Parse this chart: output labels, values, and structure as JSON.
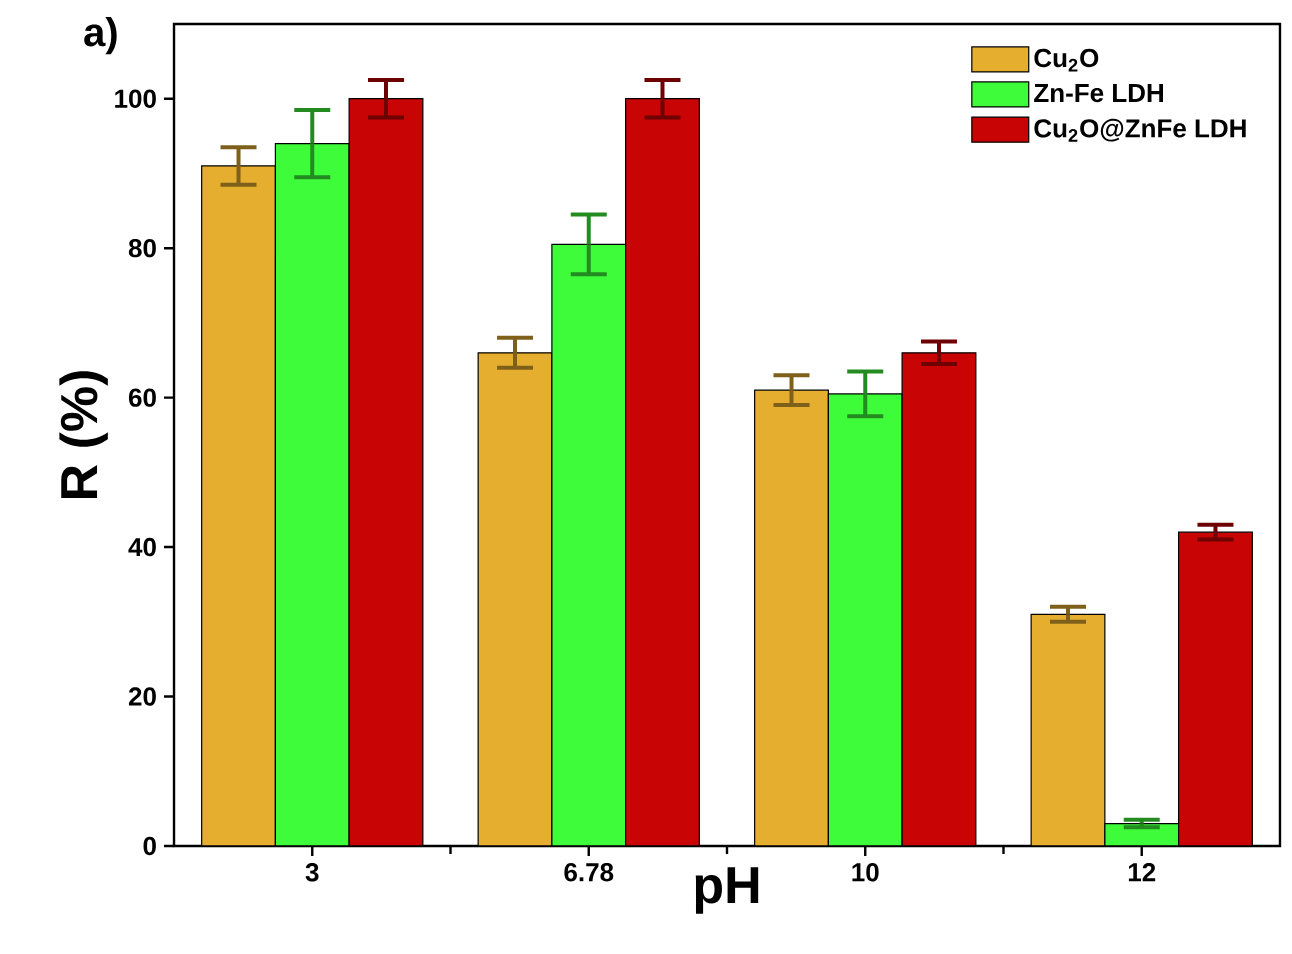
{
  "chart_data": {
    "type": "bar",
    "xlabel": "pH",
    "ylabel": "R (%)",
    "categories": [
      "3",
      "6.78",
      "10",
      "12"
    ],
    "series": [
      {
        "name": "Cu$_{2}$O",
        "color": "#e6ae2f",
        "values": [
          91,
          66,
          61,
          31
        ],
        "errors": [
          2.5,
          2,
          2,
          1
        ]
      },
      {
        "name": "Zn-Fe LDH",
        "color": "#3ffc3a",
        "values": [
          94,
          80.5,
          60.5,
          3
        ],
        "errors": [
          4.5,
          4,
          3,
          0.5
        ]
      },
      {
        "name": "Cu$_{2}$O@ZnFe LDH",
        "color": "#c80405",
        "values": [
          100,
          100,
          66,
          42
        ],
        "errors": [
          2.5,
          2.5,
          1.5,
          1
        ]
      }
    ],
    "ylim": [
      0,
      110
    ],
    "yticks": [
      0,
      20,
      40,
      60,
      80,
      100
    ],
    "legend": "top right",
    "annotations": [
      "a)"
    ]
  }
}
